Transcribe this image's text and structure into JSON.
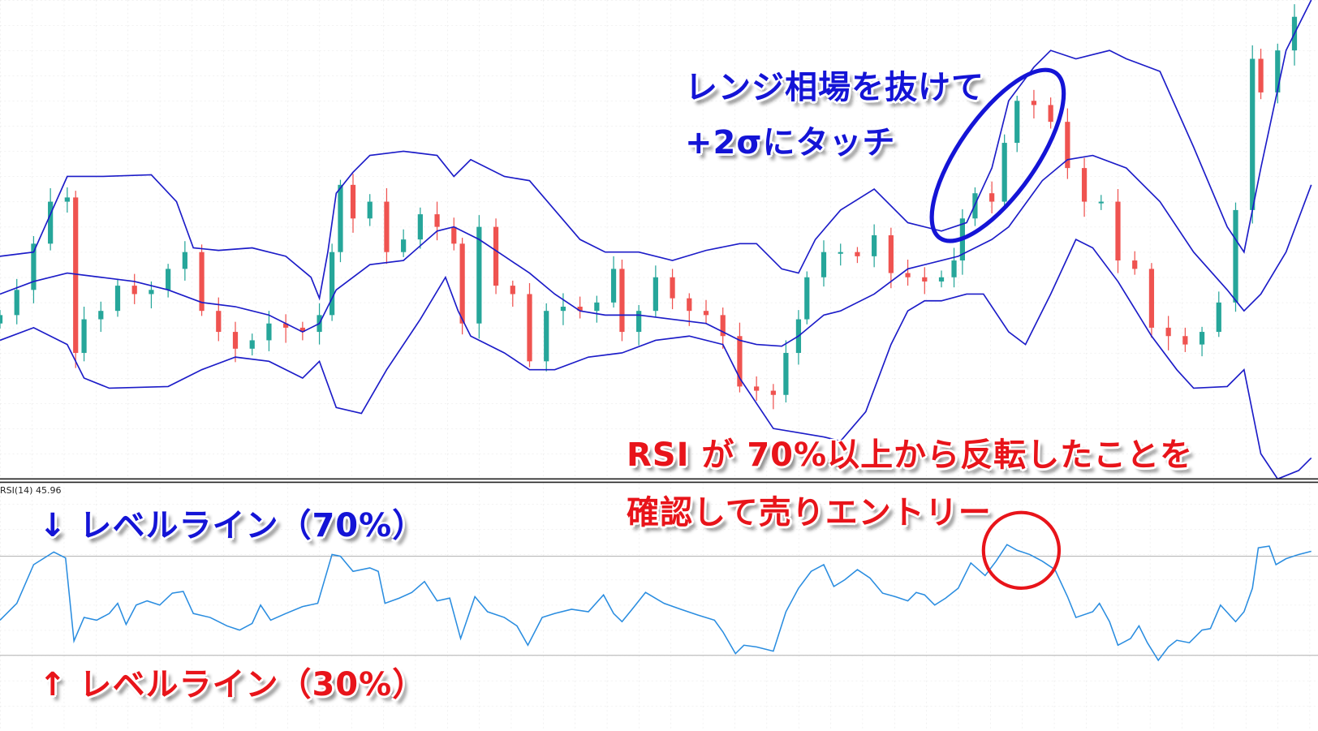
{
  "colors": {
    "up_candle": "#26a69a",
    "down_candle": "#ef5350",
    "bands": "#1c1cc8",
    "rsi_line": "#2a8de0",
    "level_line": "#b0b0b0",
    "annotation_blue": "#1414d6",
    "annotation_red": "#e8141a"
  },
  "annotations": {
    "breakout_line1": "レンジ相場を抜けて",
    "breakout_line2": "+2σにタッチ",
    "entry_line1": "RSI が 70%以上から反転したことを",
    "entry_line2": "確認して売りエントリー",
    "level_70": "↓ レベルライン（70%）",
    "level_30": "↑ レベルライン（30%）"
  },
  "chart_data": [
    {
      "type": "candlestick",
      "title": "",
      "note": "price axis not shown; values are relative price levels",
      "x_unit": "bar",
      "closes": [
        [
          0,
          225
        ],
        [
          2,
          255
        ],
        [
          4,
          310
        ],
        [
          6,
          360
        ],
        [
          8,
          365
        ],
        [
          9,
          180
        ],
        [
          10,
          220
        ],
        [
          12,
          230
        ],
        [
          14,
          260
        ],
        [
          16,
          250
        ],
        [
          18,
          255
        ],
        [
          20,
          280
        ],
        [
          22,
          300
        ],
        [
          24,
          230
        ],
        [
          26,
          205
        ],
        [
          28,
          185
        ],
        [
          30,
          195
        ],
        [
          32,
          215
        ],
        [
          34,
          210
        ],
        [
          36,
          205
        ],
        [
          38,
          225
        ],
        [
          39.5,
          300
        ],
        [
          40.5,
          380
        ],
        [
          42,
          340
        ],
        [
          44,
          360
        ],
        [
          46,
          300
        ],
        [
          48,
          315
        ],
        [
          50,
          345
        ],
        [
          52,
          330
        ],
        [
          54,
          310
        ],
        [
          55,
          215
        ],
        [
          57,
          330
        ],
        [
          59,
          260
        ],
        [
          61,
          250
        ],
        [
          63,
          170
        ],
        [
          65,
          230
        ],
        [
          67,
          235
        ],
        [
          69,
          230
        ],
        [
          71,
          240
        ],
        [
          73,
          280
        ],
        [
          74,
          205
        ],
        [
          76,
          230
        ],
        [
          78,
          270
        ],
        [
          80,
          245
        ],
        [
          82,
          230
        ],
        [
          84,
          225
        ],
        [
          86,
          200
        ],
        [
          88,
          140
        ],
        [
          90,
          135
        ],
        [
          92,
          130
        ],
        [
          93.5,
          180
        ],
        [
          95,
          220
        ],
        [
          96,
          270
        ],
        [
          98,
          300
        ],
        [
          100,
          300
        ],
        [
          102,
          295
        ],
        [
          104,
          320
        ],
        [
          106,
          275
        ],
        [
          108,
          270
        ],
        [
          110,
          265
        ],
        [
          112,
          270
        ],
        [
          113.5,
          290
        ],
        [
          114.5,
          340
        ],
        [
          116,
          370
        ],
        [
          118,
          360
        ],
        [
          119.5,
          430
        ],
        [
          121,
          480
        ],
        [
          123,
          475
        ],
        [
          125,
          455
        ],
        [
          127,
          400
        ],
        [
          129,
          360
        ],
        [
          131,
          360
        ],
        [
          133,
          290
        ],
        [
          135,
          280
        ],
        [
          137,
          210
        ],
        [
          139,
          200
        ],
        [
          141,
          190
        ],
        [
          143,
          205
        ],
        [
          145,
          240
        ],
        [
          147,
          350
        ],
        [
          149,
          530
        ],
        [
          150,
          490
        ],
        [
          152,
          540
        ],
        [
          154,
          580
        ]
      ],
      "bollinger": {
        "upper": [
          [
            0,
            295
          ],
          [
            4,
            300
          ],
          [
            8,
            390
          ],
          [
            12,
            390
          ],
          [
            18,
            392
          ],
          [
            21,
            360
          ],
          [
            23,
            305
          ],
          [
            26,
            302
          ],
          [
            30,
            305
          ],
          [
            34,
            295
          ],
          [
            37,
            270
          ],
          [
            38,
            245
          ],
          [
            39,
            300
          ],
          [
            40,
            370
          ],
          [
            42,
            395
          ],
          [
            44,
            415
          ],
          [
            48,
            420
          ],
          [
            52,
            415
          ],
          [
            54,
            390
          ],
          [
            56,
            410
          ],
          [
            60,
            390
          ],
          [
            63,
            385
          ],
          [
            66,
            350
          ],
          [
            69,
            315
          ],
          [
            72,
            300
          ],
          [
            76,
            300
          ],
          [
            80,
            290
          ],
          [
            84,
            302
          ],
          [
            88,
            310
          ],
          [
            90,
            310
          ],
          [
            93,
            280
          ],
          [
            95,
            275
          ],
          [
            97,
            315
          ],
          [
            100,
            350
          ],
          [
            104,
            375
          ],
          [
            108,
            335
          ],
          [
            112,
            325
          ],
          [
            115,
            335
          ],
          [
            118,
            400
          ],
          [
            120,
            480
          ],
          [
            123,
            520
          ],
          [
            125,
            540
          ],
          [
            128,
            530
          ],
          [
            130,
            535
          ],
          [
            132,
            540
          ],
          [
            134,
            530
          ],
          [
            138,
            515
          ],
          [
            142,
            425
          ],
          [
            146,
            330
          ],
          [
            148,
            300
          ],
          [
            150,
            400
          ],
          [
            153,
            540
          ],
          [
            156,
            600
          ]
        ],
        "middle": [
          [
            0,
            250
          ],
          [
            4,
            265
          ],
          [
            8,
            275
          ],
          [
            12,
            270
          ],
          [
            16,
            265
          ],
          [
            20,
            255
          ],
          [
            24,
            240
          ],
          [
            28,
            235
          ],
          [
            32,
            225
          ],
          [
            36,
            205
          ],
          [
            38,
            215
          ],
          [
            40,
            255
          ],
          [
            44,
            285
          ],
          [
            48,
            290
          ],
          [
            52,
            325
          ],
          [
            54,
            330
          ],
          [
            57,
            315
          ],
          [
            60,
            295
          ],
          [
            63,
            275
          ],
          [
            66,
            250
          ],
          [
            69,
            230
          ],
          [
            72,
            225
          ],
          [
            76,
            225
          ],
          [
            80,
            220
          ],
          [
            84,
            215
          ],
          [
            88,
            195
          ],
          [
            90,
            190
          ],
          [
            93,
            188
          ],
          [
            95,
            200
          ],
          [
            98,
            225
          ],
          [
            100,
            230
          ],
          [
            104,
            250
          ],
          [
            108,
            280
          ],
          [
            112,
            290
          ],
          [
            114,
            295
          ],
          [
            116,
            305
          ],
          [
            118,
            315
          ],
          [
            120,
            330
          ],
          [
            124,
            385
          ],
          [
            127,
            410
          ],
          [
            130,
            415
          ],
          [
            134,
            400
          ],
          [
            138,
            360
          ],
          [
            142,
            300
          ],
          [
            146,
            255
          ],
          [
            148,
            230
          ],
          [
            150,
            250
          ],
          [
            153,
            300
          ],
          [
            156,
            380
          ]
        ],
        "lower": [
          [
            0,
            195
          ],
          [
            4,
            210
          ],
          [
            8,
            190
          ],
          [
            10,
            150
          ],
          [
            13,
            138
          ],
          [
            20,
            140
          ],
          [
            24,
            160
          ],
          [
            28,
            175
          ],
          [
            32,
            170
          ],
          [
            36,
            150
          ],
          [
            38,
            170
          ],
          [
            40,
            115
          ],
          [
            43,
            108
          ],
          [
            46,
            160
          ],
          [
            50,
            220
          ],
          [
            53,
            270
          ],
          [
            54.5,
            230
          ],
          [
            56,
            200
          ],
          [
            60,
            180
          ],
          [
            63,
            160
          ],
          [
            66,
            160
          ],
          [
            70,
            175
          ],
          [
            74,
            180
          ],
          [
            78,
            195
          ],
          [
            82,
            200
          ],
          [
            86,
            190
          ],
          [
            88,
            150
          ],
          [
            92,
            90
          ],
          [
            95,
            85
          ],
          [
            98,
            80
          ],
          [
            100,
            75
          ],
          [
            103,
            110
          ],
          [
            106,
            190
          ],
          [
            108,
            230
          ],
          [
            110,
            242
          ],
          [
            112,
            242
          ],
          [
            115,
            250
          ],
          [
            117,
            250
          ],
          [
            120,
            205
          ],
          [
            122,
            190
          ],
          [
            125,
            250
          ],
          [
            128,
            315
          ],
          [
            130,
            305
          ],
          [
            133,
            265
          ],
          [
            137,
            200
          ],
          [
            140,
            160
          ],
          [
            142,
            138
          ],
          [
            146,
            140
          ],
          [
            148,
            160
          ],
          [
            150,
            60
          ],
          [
            152,
            30
          ],
          [
            154.5,
            40
          ],
          [
            156,
            55
          ]
        ]
      }
    },
    {
      "type": "line",
      "label": "RSI(14) 45.96",
      "ylim": [
        0,
        100
      ],
      "levels": [
        70,
        30
      ],
      "x_unit": "bar",
      "values": [
        [
          0,
          44.2
        ],
        [
          2,
          51.0
        ],
        [
          4,
          66.6
        ],
        [
          6.4,
          71.7
        ],
        [
          7.8,
          69.3
        ],
        [
          8.8,
          35.8
        ],
        [
          10,
          45.3
        ],
        [
          11.5,
          44.2
        ],
        [
          13,
          46.9
        ],
        [
          14,
          51.0
        ],
        [
          15,
          42.5
        ],
        [
          16.2,
          50.3
        ],
        [
          17.5,
          52.0
        ],
        [
          19,
          50.3
        ],
        [
          20.5,
          55.1
        ],
        [
          21.8,
          55.8
        ],
        [
          23,
          46.9
        ],
        [
          25,
          45.3
        ],
        [
          27,
          41.9
        ],
        [
          28.5,
          40.2
        ],
        [
          30,
          42.9
        ],
        [
          31,
          50.3
        ],
        [
          32.2,
          44.2
        ],
        [
          34,
          46.9
        ],
        [
          36,
          49.7
        ],
        [
          37.8,
          51.0
        ],
        [
          39.5,
          70.7
        ],
        [
          40.5,
          70.0
        ],
        [
          42,
          63.9
        ],
        [
          44,
          65.3
        ],
        [
          45,
          63.9
        ],
        [
          45.8,
          51.0
        ],
        [
          47.5,
          53.1
        ],
        [
          49,
          55.4
        ],
        [
          50.5,
          59.8
        ],
        [
          52,
          52.0
        ],
        [
          53.5,
          53.1
        ],
        [
          54.8,
          36.8
        ],
        [
          56.5,
          53.7
        ],
        [
          58,
          47.6
        ],
        [
          60,
          45.3
        ],
        [
          61.5,
          41.9
        ],
        [
          62.8,
          34.1
        ],
        [
          64.5,
          45.3
        ],
        [
          66,
          46.9
        ],
        [
          68,
          48.6
        ],
        [
          70,
          47.6
        ],
        [
          71.8,
          54.4
        ],
        [
          73,
          46.9
        ],
        [
          74,
          43.6
        ],
        [
          75.2,
          48.6
        ],
        [
          76.8,
          55.4
        ],
        [
          79,
          51.0
        ],
        [
          81,
          48.6
        ],
        [
          83,
          46.3
        ],
        [
          85,
          44.2
        ],
        [
          86,
          39.5
        ],
        [
          87.5,
          30.7
        ],
        [
          88.5,
          34.1
        ],
        [
          90,
          33.4
        ],
        [
          92,
          31.7
        ],
        [
          93.5,
          47.6
        ],
        [
          95,
          57.1
        ],
        [
          96.5,
          63.9
        ],
        [
          98,
          66.6
        ],
        [
          99.2,
          57.8
        ],
        [
          100.5,
          60.5
        ],
        [
          102,
          64.6
        ],
        [
          103.5,
          61.2
        ],
        [
          105,
          55.1
        ],
        [
          106.5,
          53.7
        ],
        [
          108,
          52.0
        ],
        [
          109,
          55.4
        ],
        [
          110,
          54.4
        ],
        [
          111.2,
          50.3
        ],
        [
          112.5,
          53.1
        ],
        [
          114,
          57.1
        ],
        [
          115.5,
          67.3
        ],
        [
          117.2,
          62.2
        ],
        [
          118.5,
          68.0
        ],
        [
          119.8,
          74.7
        ],
        [
          121,
          72.4
        ],
        [
          122.5,
          70.7
        ],
        [
          124,
          68.0
        ],
        [
          125.5,
          64.6
        ],
        [
          127,
          53.7
        ],
        [
          128,
          45.3
        ],
        [
          130,
          47.6
        ],
        [
          130.8,
          51.0
        ],
        [
          132,
          43.6
        ],
        [
          133,
          34.1
        ],
        [
          134.5,
          36.8
        ],
        [
          135.5,
          41.9
        ],
        [
          136.5,
          35.1
        ],
        [
          137.8,
          28.0
        ],
        [
          139,
          33.4
        ],
        [
          140,
          36.1
        ],
        [
          141.5,
          35.1
        ],
        [
          143,
          40.2
        ],
        [
          144,
          40.8
        ],
        [
          145.2,
          50.3
        ],
        [
          147,
          43.6
        ],
        [
          148,
          47.6
        ],
        [
          149,
          57.1
        ],
        [
          149.7,
          73.4
        ],
        [
          151,
          74.1
        ],
        [
          151.8,
          66.6
        ],
        [
          153,
          69.0
        ],
        [
          154.5,
          70.7
        ],
        [
          156,
          72.0
        ]
      ]
    }
  ]
}
